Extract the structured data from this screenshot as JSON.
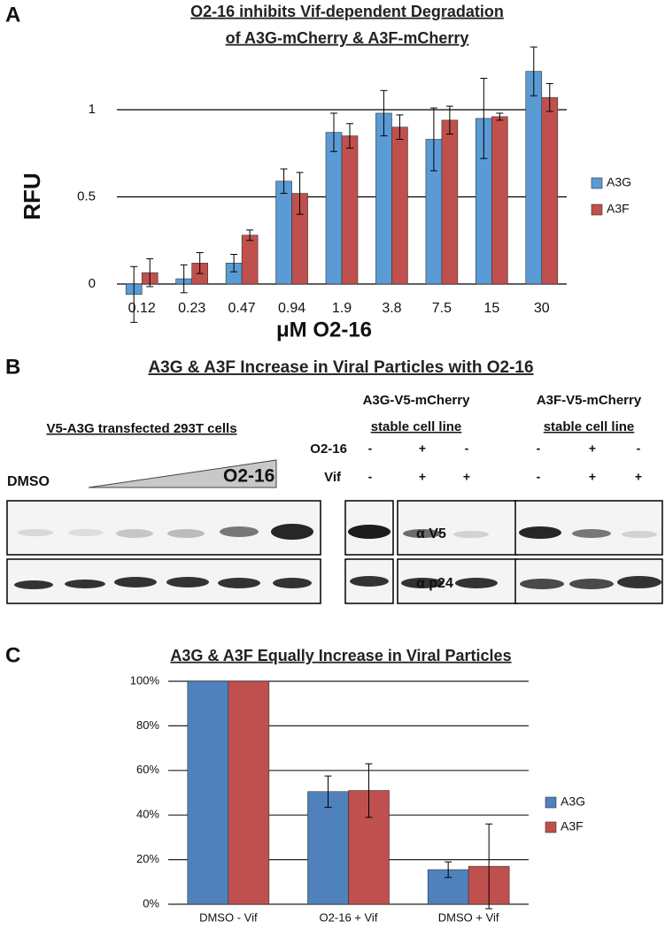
{
  "panel_labels": [
    "A",
    "B",
    "C"
  ],
  "chart_data": [
    {
      "type": "bar",
      "title": [
        "O2-16 inhibits Vif-dependent Degradation",
        "of A3G-mCherry & A3F-mCherry"
      ],
      "x_label": "μM O2-16",
      "y_label": "RFU",
      "categories": [
        "0.12",
        "0.23",
        "0.47",
        "0.94",
        "1.9",
        "3.8",
        "7.5",
        "15",
        "30"
      ],
      "series": [
        {
          "name": "A3G",
          "color": "#5b9bd5",
          "values": [
            -0.06,
            0.03,
            0.12,
            0.59,
            0.87,
            0.98,
            0.83,
            0.95,
            1.22
          ],
          "errors": [
            0.16,
            0.08,
            0.05,
            0.07,
            0.11,
            0.13,
            0.18,
            0.23,
            0.14
          ]
        },
        {
          "name": "A3F",
          "color": "#c0504d",
          "values": [
            0.065,
            0.12,
            0.28,
            0.52,
            0.85,
            0.9,
            0.94,
            0.96,
            1.07
          ],
          "errors": [
            0.08,
            0.06,
            0.03,
            0.12,
            0.07,
            0.07,
            0.08,
            0.02,
            0.08
          ]
        }
      ],
      "ylim": [
        -0.25,
        1.3
      ],
      "yticks": [
        0,
        0.5,
        1
      ],
      "grid": true
    },
    {
      "type": "bar",
      "title": "A3G & A3F Equally Increase in Viral Particles",
      "categories": [
        "DMSO - Vif",
        "O2-16 + Vif",
        "DMSO + Vif"
      ],
      "series": [
        {
          "name": "A3G",
          "color": "#4f81bd",
          "values": [
            100,
            50.5,
            15.5
          ],
          "errors": [
            null,
            7,
            3.5
          ]
        },
        {
          "name": "A3F",
          "color": "#c0504d",
          "values": [
            100,
            51,
            17
          ],
          "errors": [
            null,
            12,
            19
          ]
        }
      ],
      "ylim": [
        0,
        100
      ],
      "yticks": [
        {
          "value": 0,
          "label": "0%"
        },
        {
          "value": 20,
          "label": "20%"
        },
        {
          "value": 40,
          "label": "40%"
        },
        {
          "value": 60,
          "label": "60%"
        },
        {
          "value": 80,
          "label": "80%"
        },
        {
          "value": 100,
          "label": "100%"
        }
      ],
      "grid": true
    }
  ],
  "blot": {
    "title": "A3G & A3F Increase in Viral Particles with O2-16",
    "left_header": "V5-A3G transfected 293T cells",
    "dmso_label": "DMSO",
    "gradient_label": "O2-16",
    "row_labels": [
      "O2-16",
      "Vif"
    ],
    "groups": [
      {
        "header": [
          "A3G-V5-mCherry",
          "stable cell line"
        ],
        "o2_16": [
          "-",
          "+",
          "-"
        ],
        "vif": [
          "-",
          "+",
          "+"
        ]
      },
      {
        "header": [
          "A3F-V5-mCherry",
          "stable cell line"
        ],
        "o2_16": [
          "-",
          "+",
          "-"
        ],
        "vif": [
          "-",
          "+",
          "+"
        ]
      }
    ],
    "antibodies": [
      "α V5",
      "α p24"
    ]
  }
}
